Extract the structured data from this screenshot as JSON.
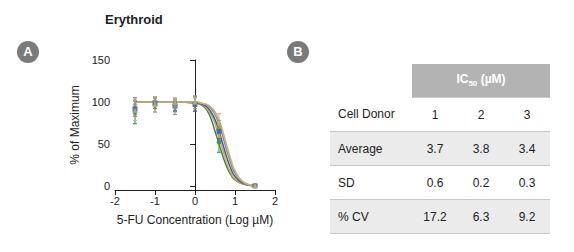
{
  "chart_data": {
    "type": "line",
    "title": "Erythroid",
    "x_label": "5-FU Concentration (Log µM)",
    "y_label": "% of Maximum",
    "xlim": [
      -2,
      2
    ],
    "xticks": [
      -2,
      -1,
      0,
      1,
      2
    ],
    "ylim": [
      -5,
      150
    ],
    "yticks": [
      0,
      50,
      100,
      150
    ],
    "grid": false,
    "series": [
      {
        "color": "#2e8b57",
        "marker": "circle",
        "x": [
          -1.5,
          -1,
          -0.5,
          0,
          0.2,
          0.3,
          0.4,
          0.5,
          0.6,
          0.7,
          0.8,
          0.9,
          1.0,
          1.2,
          1.5
        ],
        "values": [
          100,
          100,
          100,
          99,
          95,
          90,
          80,
          65,
          50,
          35,
          22,
          13,
          7,
          2,
          0
        ],
        "point_x": [
          -1.5,
          -1,
          -0.5,
          0,
          0.6,
          1.5
        ],
        "point_values": [
          88,
          96,
          97,
          98,
          52,
          0
        ],
        "point_errors": [
          14,
          8,
          7,
          9,
          12,
          1
        ]
      },
      {
        "color": "#e8a33c",
        "marker": "triangle",
        "x": [
          -1.5,
          -1,
          -0.5,
          0,
          0.2,
          0.3,
          0.4,
          0.5,
          0.6,
          0.7,
          0.8,
          0.9,
          1.0,
          1.2,
          1.5
        ],
        "values": [
          100,
          100,
          100,
          99,
          96,
          92,
          85,
          74,
          58,
          42,
          26,
          15,
          8,
          2,
          0
        ],
        "point_x": [
          -1.5,
          -1,
          -0.5,
          0,
          0.6,
          1.5
        ],
        "point_values": [
          95,
          98,
          96,
          101,
          60,
          0
        ],
        "point_errors": [
          10,
          6,
          8,
          6,
          10,
          1
        ]
      },
      {
        "color": "#3a5fa8",
        "marker": "square",
        "x": [
          -1.5,
          -1,
          -0.5,
          0,
          0.2,
          0.3,
          0.4,
          0.5,
          0.6,
          0.7,
          0.8,
          0.9,
          1.0,
          1.2,
          1.5
        ],
        "values": [
          100,
          100,
          100,
          99,
          97,
          94,
          88,
          79,
          65,
          49,
          33,
          20,
          11,
          3,
          0
        ],
        "point_x": [
          -1.5,
          -1,
          -0.5,
          0,
          0.6,
          1.5
        ],
        "point_values": [
          92,
          99,
          95,
          97,
          65,
          0
        ],
        "point_errors": [
          9,
          7,
          6,
          8,
          9,
          1
        ]
      },
      {
        "color": "#8f8f8f",
        "marker": "diamond",
        "x": [
          -1.5,
          -1,
          -0.5,
          0,
          0.2,
          0.3,
          0.4,
          0.5,
          0.6,
          0.7,
          0.8,
          0.9,
          1.0,
          1.2,
          1.5
        ],
        "values": [
          100,
          100,
          100,
          100,
          98,
          96,
          92,
          85,
          73,
          58,
          41,
          26,
          15,
          4,
          0
        ],
        "point_x": [
          -1.5,
          -1,
          -0.5,
          0,
          0.6,
          1.5
        ],
        "point_values": [
          97,
          100,
          94,
          99,
          70,
          0
        ],
        "point_errors": [
          8,
          5,
          9,
          7,
          8,
          1
        ]
      },
      {
        "color": "#c8b27a",
        "marker": "triangle",
        "x": [
          -1.5,
          -1,
          -0.5,
          0,
          0.2,
          0.3,
          0.4,
          0.5,
          0.6,
          0.7,
          0.8,
          0.9,
          1.0,
          1.2,
          1.5
        ],
        "values": [
          100,
          100,
          100,
          100,
          98,
          97,
          94,
          88,
          78,
          64,
          47,
          31,
          18,
          5,
          0
        ],
        "point_x": [
          -1.5,
          -1,
          -0.5,
          0,
          0.6,
          1.5
        ],
        "point_values": [
          90,
          97,
          99,
          100,
          75,
          0
        ],
        "point_errors": [
          12,
          9,
          6,
          5,
          11,
          1
        ]
      }
    ]
  },
  "panels": [
    "A",
    "B"
  ],
  "table": {
    "header": {
      "main": "IC",
      "sub": "50",
      "rest": " (µM)"
    },
    "rows": [
      [
        "Cell Donor",
        "1",
        "2",
        "3"
      ],
      [
        "Average",
        "3.7",
        "3.8",
        "3.4"
      ],
      [
        "SD",
        "0.6",
        "0.2",
        "0.3"
      ],
      [
        "% CV",
        "17.2",
        "6.3",
        "9.2"
      ]
    ]
  }
}
